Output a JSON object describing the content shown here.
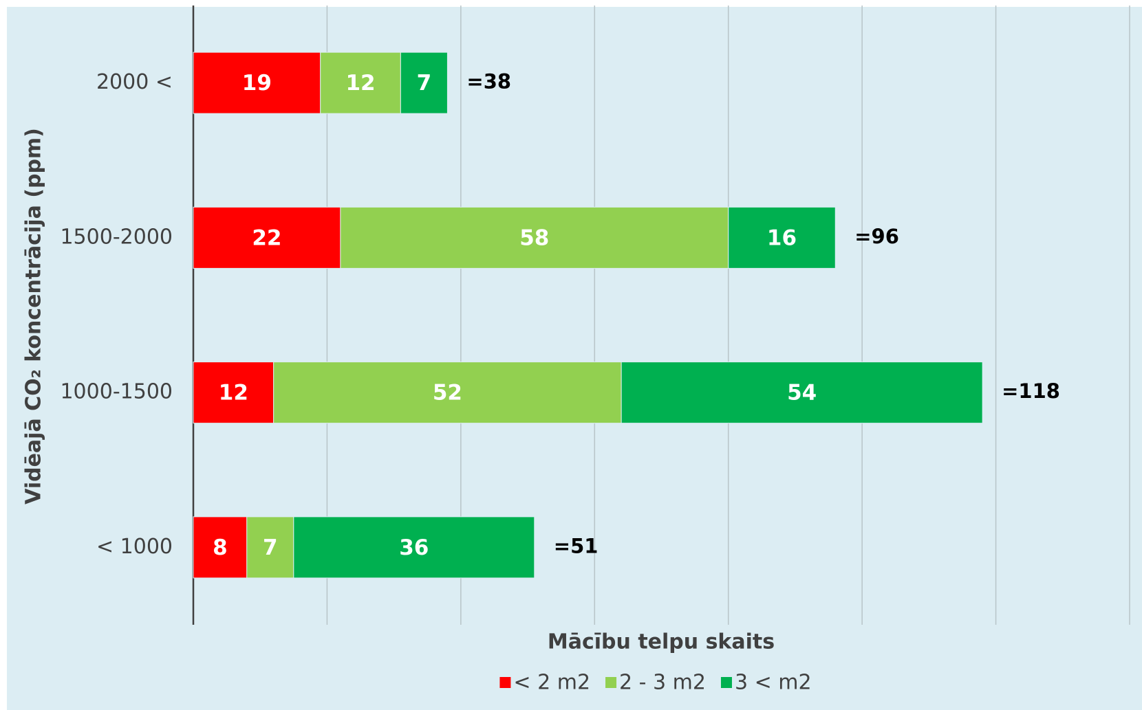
{
  "chart_data": {
    "type": "stacked_barh",
    "x_label": "Mācību telpu skaits",
    "y_label": "Vidēajā CO₂ koncentrācija (ppm)",
    "categories": [
      "2000 <",
      "1500-2000",
      "1000-1500",
      "< 1000"
    ],
    "series": [
      {
        "name": "< 2 m2",
        "color": "#ff0000",
        "values": [
          19,
          22,
          12,
          8
        ]
      },
      {
        "name": "2 - 3 m2",
        "color": "#92d050",
        "values": [
          12,
          58,
          52,
          7
        ]
      },
      {
        "name": "3 < m2",
        "color": "#00b050",
        "values": [
          7,
          16,
          54,
          36
        ]
      }
    ],
    "annotations": [
      "=38",
      "=96",
      "=118",
      "=51"
    ],
    "xlim": [
      0,
      140
    ],
    "xticks": [
      0,
      20,
      40,
      60,
      80,
      100,
      120,
      140
    ],
    "grid": true,
    "legend": "bottom"
  }
}
